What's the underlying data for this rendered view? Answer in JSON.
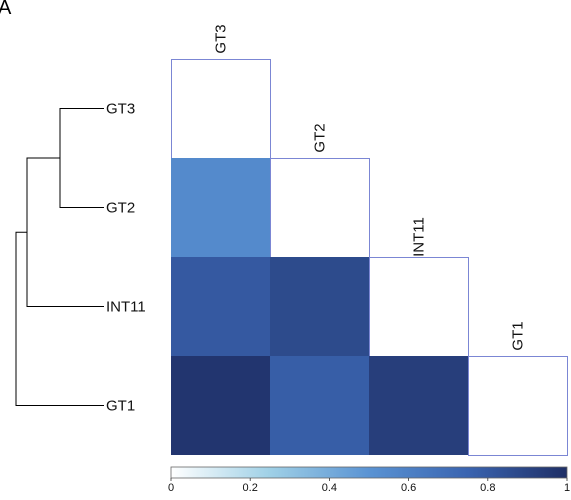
{
  "panel_label": "A",
  "chart_data": {
    "type": "heatmap",
    "rows": [
      "GT3",
      "GT2",
      "INT11",
      "GT1"
    ],
    "columns": [
      "GT3",
      "GT2",
      "INT11",
      "GT1"
    ],
    "lower_triangle": true,
    "matrix": [
      [
        null,
        null,
        null,
        null
      ],
      [
        0.55,
        null,
        null,
        null
      ],
      [
        0.8,
        0.87,
        null,
        null
      ],
      [
        0.97,
        0.78,
        0.93,
        null
      ]
    ],
    "colorbar": {
      "range": [
        0,
        1
      ],
      "ticks": [
        "0",
        "0.2",
        "0.4",
        "0.6",
        "0.8",
        "1"
      ],
      "tick_values": [
        0,
        0.2,
        0.4,
        0.6,
        0.8,
        1
      ],
      "colors": [
        "#ffffff",
        "#9fd0e6",
        "#5a93d3",
        "#3a64b0",
        "#1f2f66"
      ]
    },
    "dendrogram": {
      "order": [
        "GT3",
        "GT2",
        "INT11",
        "GT1"
      ],
      "merges": [
        {
          "left": "GT3",
          "right": "GT2",
          "height": 0.2
        },
        {
          "left": "GT3+GT2",
          "right": "INT11",
          "height": 0.35
        },
        {
          "left": "GT3+GT2+INT11",
          "right": "GT1",
          "height": 0.4
        }
      ]
    },
    "cell_border_color": "#7b86d4"
  }
}
